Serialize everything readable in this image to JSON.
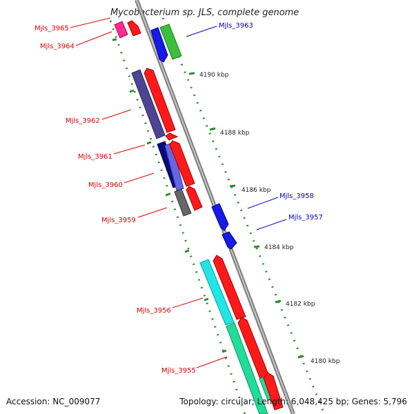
{
  "title": "Mycobacterium sp. JLS, complete genome",
  "footer": {
    "accession": "Accession: NC_009077",
    "summary": "Topology: circular; Length: 6,048,425 bp; Genes: 5,796"
  },
  "colors": {
    "backbone": "#8a8a8a",
    "dots": "#2e8b2e",
    "label_reverse": "#dd0000",
    "label_forward": "#0000cc"
  },
  "scale_ticks": [
    "4190 kbp",
    "4188 kbp",
    "4186 kbp",
    "4184 kbp",
    "4182 kbp",
    "4180 kbp"
  ],
  "genes": [
    {
      "name": "Mjls_3965",
      "strand": "reverse",
      "color": "#ff2d8f"
    },
    {
      "name": "Mjls_3964",
      "strand": "reverse",
      "color": "#ff1a1a"
    },
    {
      "name": "Mjls_3963",
      "strand": "forward",
      "color": "#1a1ae6"
    },
    {
      "name": "Mjls_3962",
      "strand": "reverse",
      "color": "#4d4592"
    },
    {
      "name": "Mjls_3961",
      "strand": "reverse",
      "color": "#0b0b7a"
    },
    {
      "name": "Mjls_3960",
      "strand": "reverse",
      "color": "#6666dd"
    },
    {
      "name": "Mjls_3959",
      "strand": "reverse",
      "color": "#666666"
    },
    {
      "name": "Mjls_3958",
      "strand": "forward",
      "color": "#1a1ae6"
    },
    {
      "name": "Mjls_3957",
      "strand": "forward",
      "color": "#1a1ae6"
    },
    {
      "name": "Mjls_3956",
      "strand": "reverse",
      "color": "#22e5e5"
    },
    {
      "name": "Mjls_3955",
      "strand": "reverse",
      "color": "#22dd99"
    }
  ]
}
